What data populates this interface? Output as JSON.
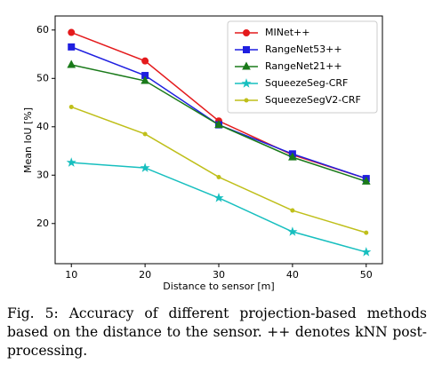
{
  "chart_data": {
    "type": "line",
    "xlabel": "Distance to sensor [m]",
    "ylabel": "Mean IoU [%]",
    "x": [
      10,
      20,
      30,
      40,
      50
    ],
    "xlim": [
      7.8,
      52.2
    ],
    "xticks": [
      10,
      20,
      30,
      40,
      50
    ],
    "ylim": [
      11.7,
      62.9
    ],
    "yticks": [
      20,
      30,
      40,
      50,
      60
    ],
    "legend": "upper right",
    "series": [
      {
        "name": "MINet++",
        "color": "#e41a1c",
        "marker": "circle",
        "values": [
          59.5,
          53.6,
          41.2,
          34.2,
          29.3
        ]
      },
      {
        "name": "RangeNet53++",
        "color": "#1f1fe0",
        "marker": "square",
        "values": [
          56.5,
          50.6,
          40.4,
          34.4,
          29.3
        ]
      },
      {
        "name": "RangeNet21++",
        "color": "#1a7a1a",
        "marker": "triangle",
        "values": [
          52.8,
          49.5,
          40.4,
          33.7,
          28.7
        ]
      },
      {
        "name": "SqueezeSeg-CRF",
        "color": "#17bfbf",
        "marker": "star",
        "values": [
          32.6,
          31.5,
          25.3,
          18.3,
          14.1
        ]
      },
      {
        "name": "SqueezeSegV2-CRF",
        "color": "#bfbf1a",
        "marker": "dot",
        "values": [
          44.1,
          38.5,
          29.6,
          22.7,
          18.1
        ]
      }
    ]
  },
  "caption": "Fig. 5: Accuracy of different projection-based methods based on the distance to the sensor. ++ denotes kNN post-processing."
}
